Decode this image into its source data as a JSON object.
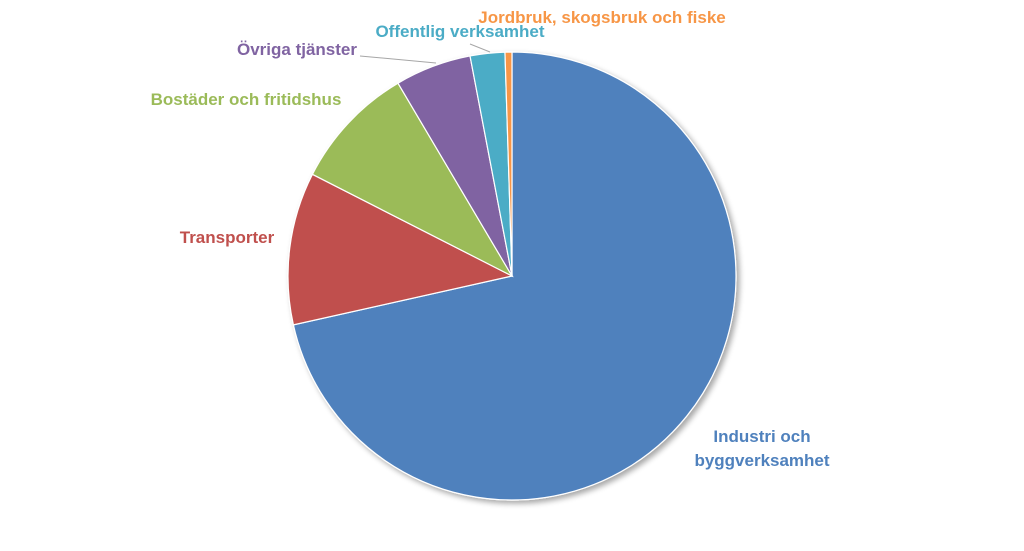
{
  "chart_data": {
    "type": "pie",
    "title": "",
    "start_angle_deg": 0,
    "direction": "clockwise",
    "slices": [
      {
        "label": "Industri och byggverksamhet",
        "label_lines": [
          "Industri och",
          "byggverksamhet"
        ],
        "value": 71.5,
        "color": "#4F81BD",
        "label_color": "#4F81BD"
      },
      {
        "label": "Transporter",
        "label_lines": [
          "Transporter"
        ],
        "value": 11.0,
        "color": "#C0504D",
        "label_color": "#C0504D"
      },
      {
        "label": "Bostäder och fritidshus",
        "label_lines": [
          "Bostäder och fritidshus"
        ],
        "value": 9.0,
        "color": "#9BBB59",
        "label_color": "#9BBB59"
      },
      {
        "label": "Övriga tjänster",
        "label_lines": [
          "Övriga tjänster"
        ],
        "value": 5.5,
        "color": "#8064A2",
        "label_color": "#8064A2"
      },
      {
        "label": "Offentlig verksamhet",
        "label_lines": [
          "Offentlig verksamhet"
        ],
        "value": 2.5,
        "color": "#4BACC6",
        "label_color": "#4BACC6"
      },
      {
        "label": "Jordbruk, skogsbruk och fiske",
        "label_lines": [
          "Jordbruk, skogsbruk och fiske"
        ],
        "value": 0.5,
        "color": "#F79646",
        "label_color": "#F79646"
      }
    ],
    "legend": "none",
    "data_labels": "category names outside with leader lines"
  }
}
